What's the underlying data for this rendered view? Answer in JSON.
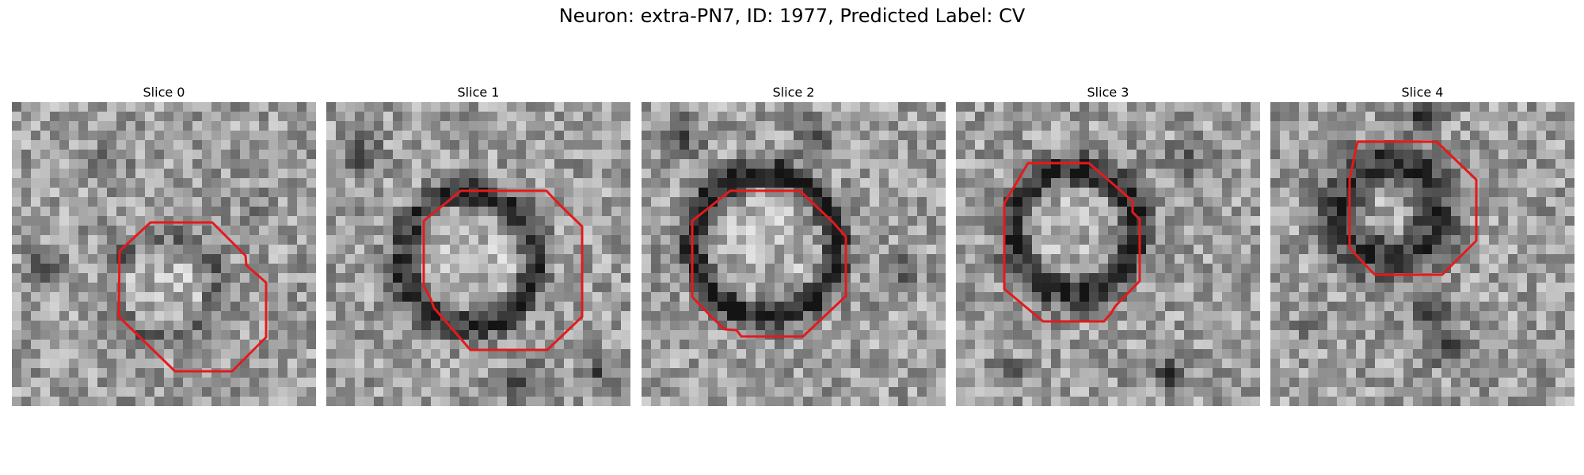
{
  "figure": {
    "title": "Neuron: extra-PN7, ID: 1977, Predicted Label: CV",
    "contour_color": "#e41a1c"
  },
  "panels": [
    {
      "title": "Slice 0"
    },
    {
      "title": "Slice 1"
    },
    {
      "title": "Slice 2"
    },
    {
      "title": "Slice 3"
    },
    {
      "title": "Slice 4"
    }
  ]
}
